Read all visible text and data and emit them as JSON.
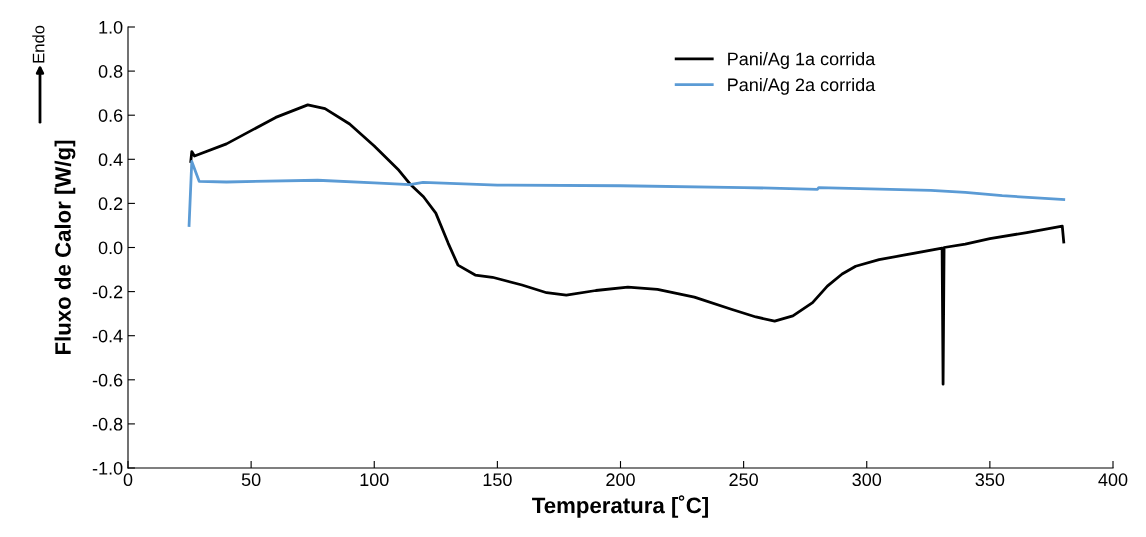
{
  "chart_data": {
    "type": "line",
    "xlabel": "Temperatura [˚C]",
    "ylabel": "Fluxo de Calor [W/g]",
    "annotations": [
      "Endo"
    ],
    "xlim": [
      0,
      400
    ],
    "xticks": [
      0,
      50,
      100,
      150,
      200,
      250,
      300,
      350,
      400
    ],
    "ylim": [
      -1.0,
      1.0
    ],
    "yticks": [
      {
        "value": -1.0,
        "label": "-1.0"
      },
      {
        "value": -0.8,
        "label": "-0.8"
      },
      {
        "value": -0.6,
        "label": "-0.6"
      },
      {
        "value": -0.4,
        "label": "-0.4"
      },
      {
        "value": -0.2,
        "label": "-0.2"
      },
      {
        "value": 0.0,
        "label": "0.0"
      },
      {
        "value": 0.2,
        "label": "0.2"
      },
      {
        "value": 0.4,
        "label": "0.4"
      },
      {
        "value": 0.6,
        "label": "0.6"
      },
      {
        "value": 0.8,
        "label": "0.8"
      },
      {
        "value": 1.0,
        "label": "1.0"
      }
    ],
    "grid": false,
    "legend": "top right",
    "marker": "none",
    "line_style": "solid",
    "series": [
      {
        "name": "Pani/Ag 1a corrida",
        "color": "#000000",
        "x": [
          25.5,
          25.9,
          27,
          40,
          50,
          60,
          73,
          80,
          90,
          100,
          110,
          114.5,
          120,
          125,
          130,
          134,
          141,
          148,
          160,
          170,
          178,
          190,
          203,
          215,
          230,
          245,
          255,
          262.6,
          270,
          278,
          284,
          290,
          295.5,
          305,
          315,
          330.6,
          331,
          331.4,
          340,
          350,
          365,
          379.4,
          380
        ],
        "values": [
          0.39,
          0.435,
          0.415,
          0.47,
          0.53,
          0.59,
          0.647,
          0.63,
          0.56,
          0.46,
          0.35,
          0.288,
          0.23,
          0.156,
          0.02,
          -0.08,
          -0.125,
          -0.135,
          -0.17,
          -0.205,
          -0.216,
          -0.195,
          -0.18,
          -0.19,
          -0.225,
          -0.28,
          -0.315,
          -0.334,
          -0.31,
          -0.25,
          -0.175,
          -0.12,
          -0.085,
          -0.055,
          -0.035,
          -0.003,
          -0.62,
          0.0,
          0.015,
          0.04,
          0.068,
          0.097,
          0.025
        ]
      },
      {
        "name": "Pani/Ag 2a corrida",
        "color": "#5b9bd5",
        "x": [
          24.8,
          25.9,
          28.9,
          40,
          77,
          100,
          114.5,
          119.8,
          150,
          200,
          250,
          280,
          280.5,
          326,
          340,
          355,
          380
        ],
        "values": [
          0.1,
          0.39,
          0.3,
          0.297,
          0.305,
          0.293,
          0.285,
          0.295,
          0.283,
          0.28,
          0.272,
          0.264,
          0.272,
          0.259,
          0.25,
          0.235,
          0.218
        ]
      }
    ]
  }
}
